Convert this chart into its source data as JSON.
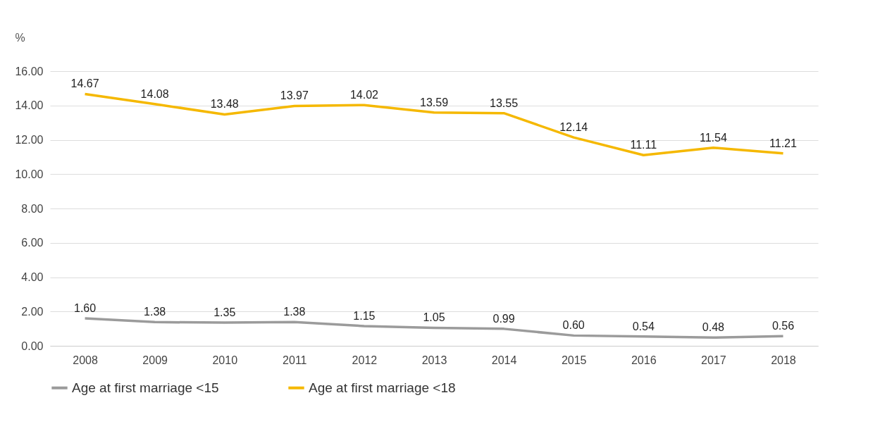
{
  "chart_data": {
    "type": "line",
    "ylabel": "%",
    "categories": [
      "2008",
      "2009",
      "2010",
      "2011",
      "2012",
      "2013",
      "2014",
      "2015",
      "2016",
      "2017",
      "2018"
    ],
    "series": [
      {
        "name": "Age at first marriage <15",
        "color": "#9b9b9b",
        "values": [
          1.6,
          1.38,
          1.35,
          1.38,
          1.15,
          1.05,
          0.99,
          0.6,
          0.54,
          0.48,
          0.56
        ],
        "value_labels": [
          "1.60",
          "1.38",
          "1.35",
          "1.38",
          "1.15",
          "1.05",
          "0.99",
          "0.60",
          "0.54",
          "0.48",
          "0.56"
        ]
      },
      {
        "name": "Age at first marriage <18",
        "color": "#f5b800",
        "values": [
          14.67,
          14.08,
          13.48,
          13.97,
          14.02,
          13.59,
          13.55,
          12.14,
          11.11,
          11.54,
          11.21
        ],
        "value_labels": [
          "14.67",
          "14.08",
          "13.48",
          "13.97",
          "14.02",
          "13.59",
          "13.55",
          "12.14",
          "11.11",
          "11.54",
          "11.21"
        ]
      }
    ],
    "ylim": [
      0,
      16
    ],
    "yticks": [
      {
        "value": 0,
        "label": "0.00"
      },
      {
        "value": 2,
        "label": "2.00"
      },
      {
        "value": 4,
        "label": "4.00"
      },
      {
        "value": 6,
        "label": "6.00"
      },
      {
        "value": 8,
        "label": "8.00"
      },
      {
        "value": 10,
        "label": "10.00"
      },
      {
        "value": 12,
        "label": "12.00"
      },
      {
        "value": 14,
        "label": "14.00"
      },
      {
        "value": 16,
        "label": "16.00"
      }
    ],
    "grid": "y",
    "legend": "bottom",
    "marker": "none",
    "line_style": "solid"
  }
}
